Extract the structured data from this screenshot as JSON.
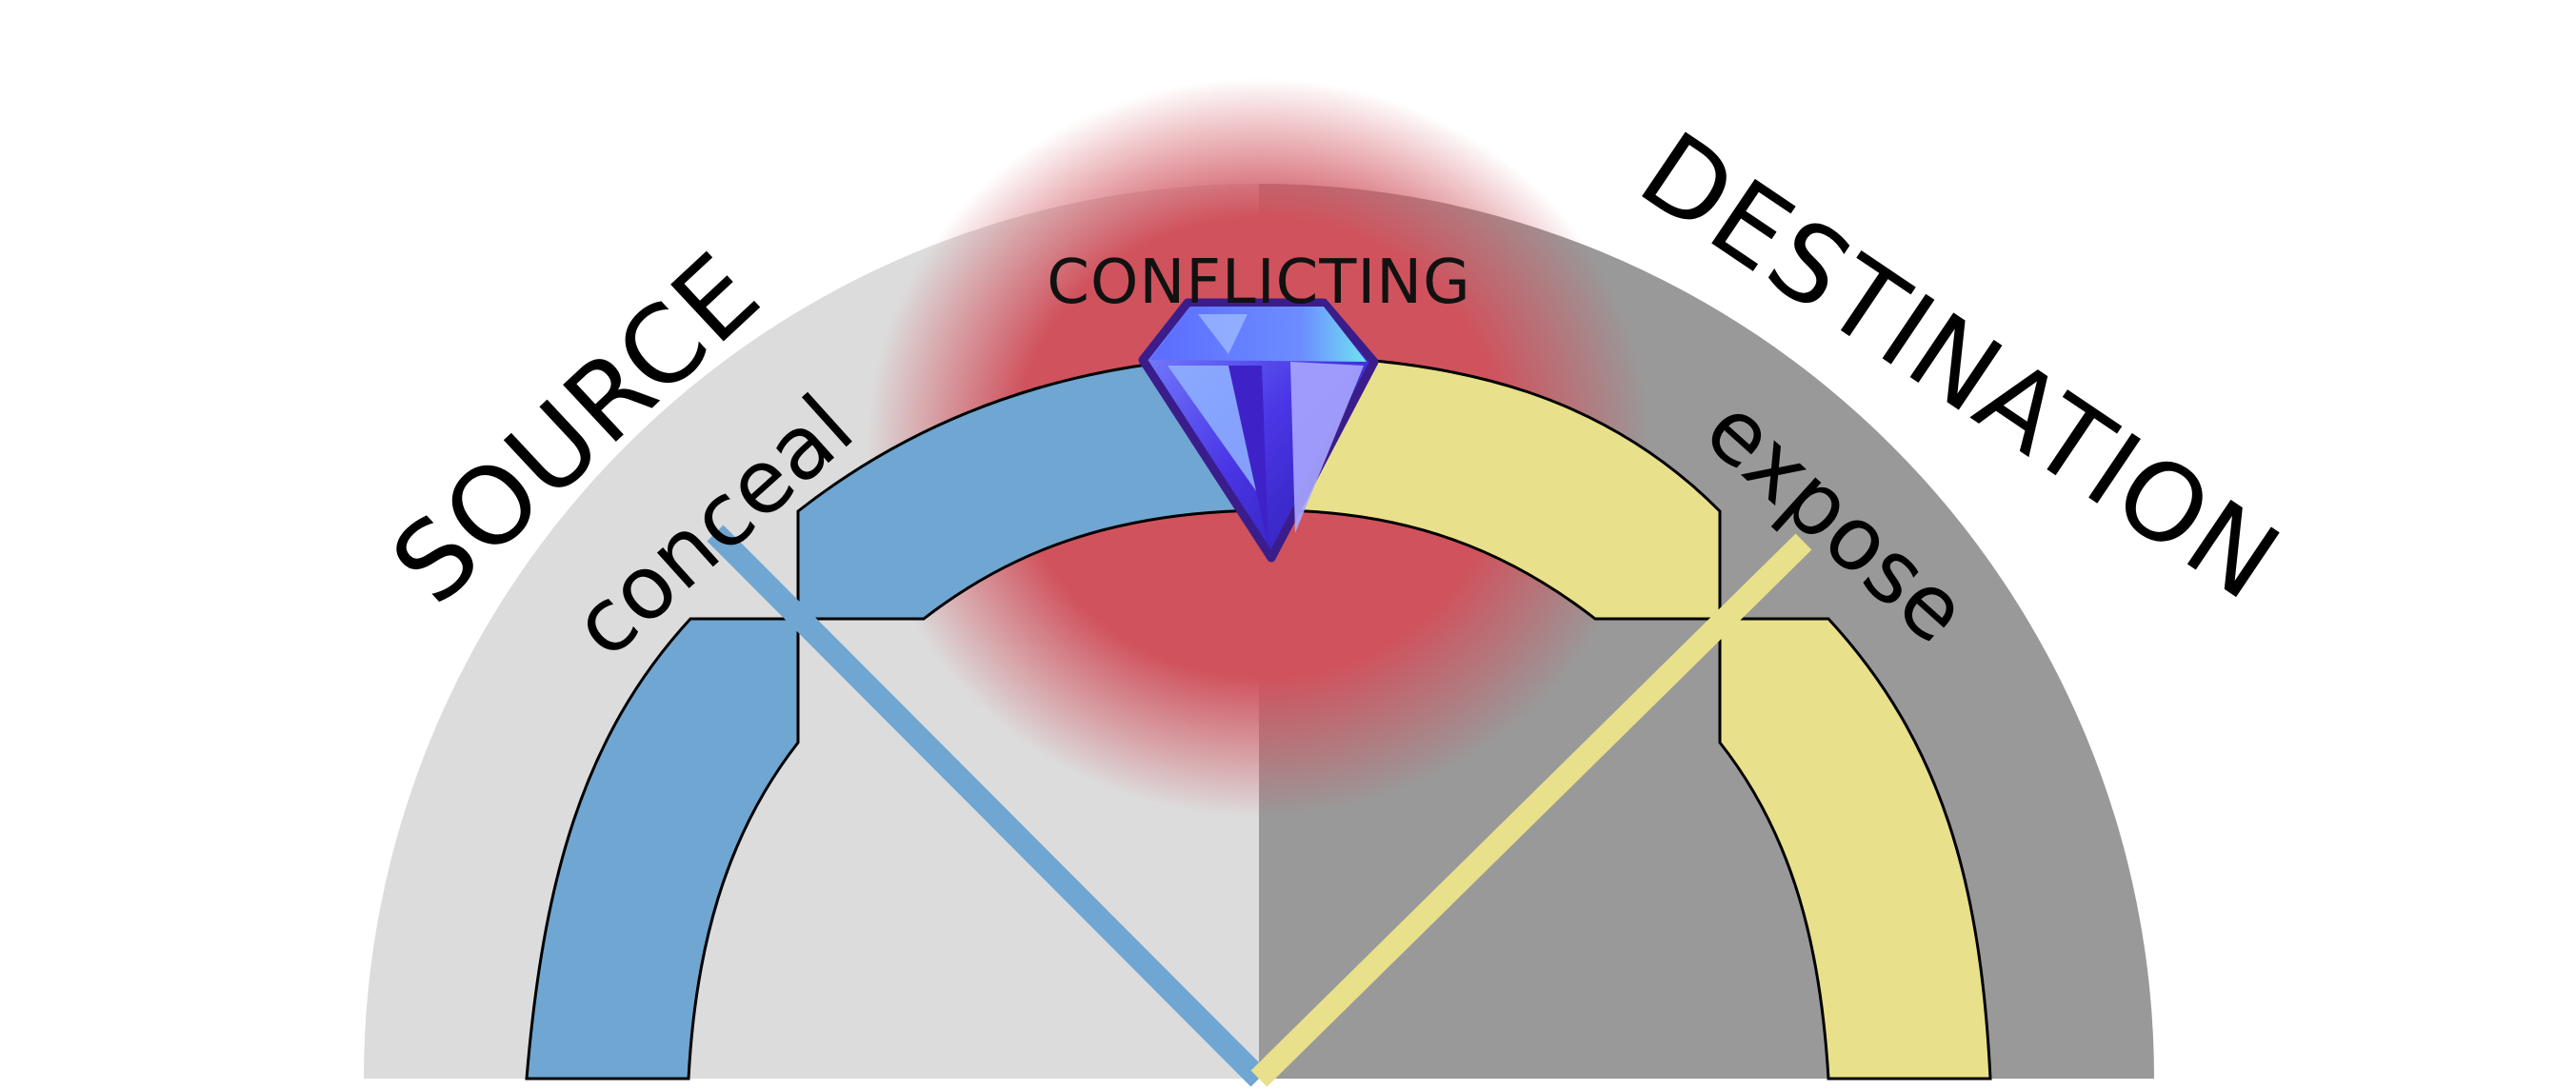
{
  "labels": {
    "source": "SOURCE",
    "destination": "DESTINATION",
    "conceal": "conceal",
    "expose": "expose",
    "conflicting": "CONFLICTING"
  },
  "colors": {
    "source_region": "#dcdcdc",
    "destination_region": "#999999",
    "conflict_glow": "#d0525d",
    "conceal_band": "#6fa6d2",
    "expose_band": "#e8e08a",
    "gem": "#5a3fe0"
  },
  "icons": {
    "gem": "diamond-icon"
  }
}
